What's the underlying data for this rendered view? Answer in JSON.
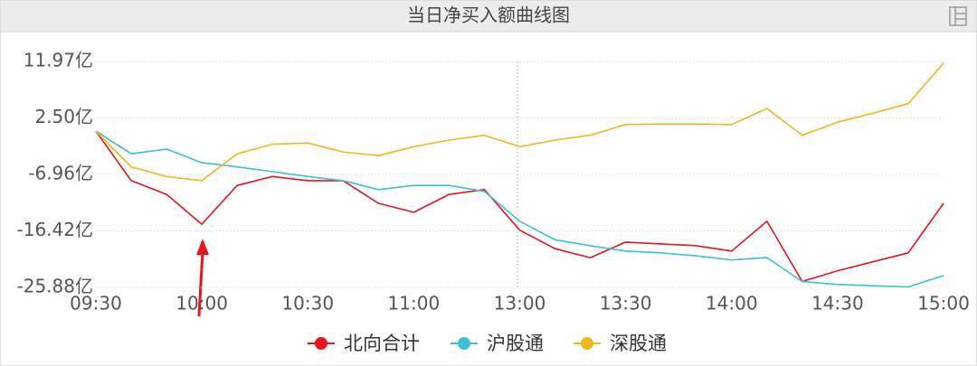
{
  "chart_data": {
    "type": "line",
    "title": "当日净买入额曲线图",
    "categories": [
      "09:30",
      null,
      null,
      "10:00",
      null,
      null,
      "10:30",
      null,
      null,
      "11:00",
      null,
      null,
      "13:00",
      null,
      null,
      "13:30",
      null,
      null,
      "14:00",
      null,
      null,
      "14:30",
      null,
      null,
      "15:00"
    ],
    "series": [
      {
        "name": "北向合计",
        "color": "#e8141b",
        "values": [
          0.3,
          -8.0,
          -10.3,
          -15.3,
          -8.8,
          -7.3,
          -8.0,
          -8.0,
          -11.8,
          -13.3,
          -10.3,
          -9.5,
          -16.3,
          -19.4,
          -20.9,
          -18.3,
          -18.6,
          -18.9,
          -19.8,
          -14.8,
          -24.9,
          -23.1,
          -21.6,
          -20.1,
          -11.8
        ]
      },
      {
        "name": "沪股通",
        "color": "#3cbfd8",
        "values": [
          0.3,
          -3.5,
          -2.7,
          -5.0,
          -5.7,
          -6.5,
          -7.3,
          -8.0,
          -9.5,
          -8.8,
          -8.8,
          -9.8,
          -14.8,
          -17.9,
          -18.9,
          -19.8,
          -20.1,
          -20.6,
          -21.3,
          -20.9,
          -24.9,
          -25.4,
          -25.6,
          -25.8,
          -23.9
        ]
      },
      {
        "name": "深股通",
        "color": "#f0b71e",
        "values": [
          0.3,
          -5.7,
          -7.3,
          -8.0,
          -3.5,
          -1.9,
          -1.7,
          -3.2,
          -3.8,
          -2.3,
          -1.2,
          -0.4,
          -2.3,
          -1.2,
          -0.4,
          1.4,
          1.5,
          1.5,
          1.4,
          4.1,
          -0.4,
          1.8,
          3.3,
          4.9,
          11.7
        ]
      }
    ],
    "ylim": [
      -25.88,
      11.97
    ],
    "yticks": [
      {
        "value": -25.88,
        "label": "-25.88亿"
      },
      {
        "value": -16.42,
        "label": "-16.42亿"
      },
      {
        "value": -6.96,
        "label": "-6.96亿"
      },
      {
        "value": 2.5,
        "label": "2.50亿"
      },
      {
        "value": 11.97,
        "label": "11.97亿"
      }
    ],
    "grid": true
  }
}
